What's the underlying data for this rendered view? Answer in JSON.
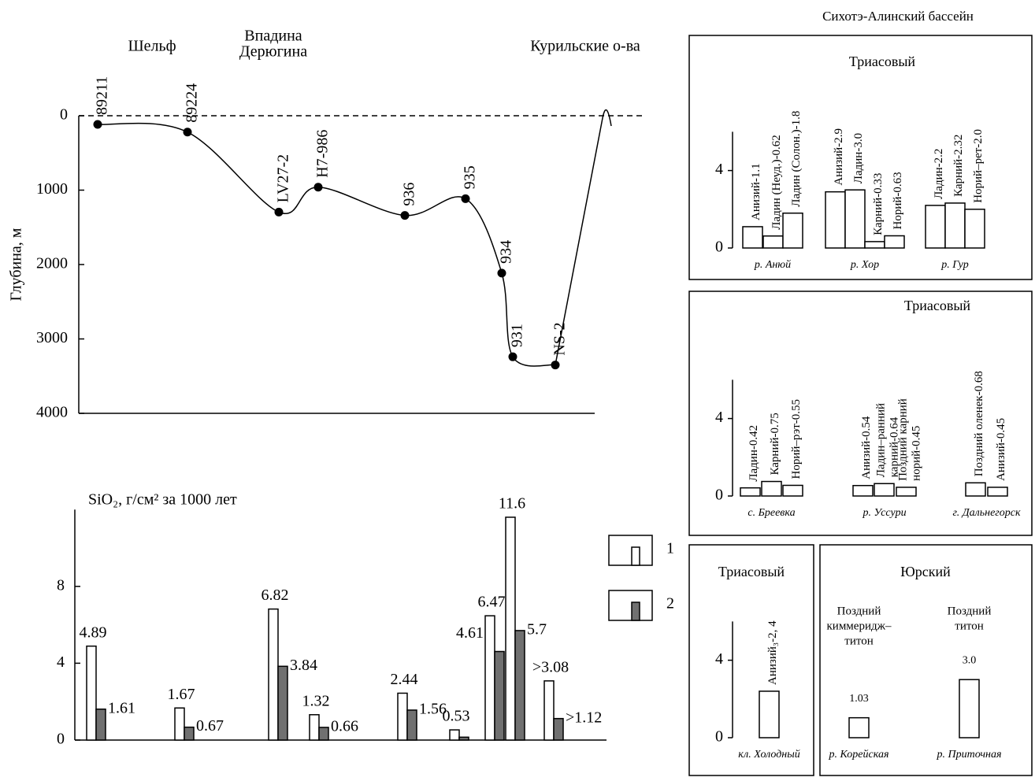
{
  "chart_data": [
    {
      "type": "line",
      "regions": [
        [
          "Шельф"
        ],
        [
          "Впадина",
          "Дерюгина"
        ],
        [
          "Курильские о-ва"
        ]
      ],
      "ylabel": "Глубина, м",
      "categories": [
        "89211",
        "89224",
        "LV27-2",
        "H7-986",
        "936",
        "935",
        "934",
        "931",
        "NS-2"
      ],
      "values": [
        116,
        220,
        1295,
        960,
        1340,
        1115,
        2115,
        3240,
        3350
      ],
      "ylim": [
        0,
        4000
      ],
      "yticks": [
        0,
        1000,
        2000,
        3000,
        4000
      ],
      "yinverted": true,
      "color": "#000000"
    },
    {
      "type": "bar",
      "title": "SiO₂, г/см² за 1000 лет",
      "ylim": [
        0,
        12
      ],
      "yticks": [
        0,
        4,
        8
      ],
      "series": [
        {
          "name": "1",
          "color": "#ffffff",
          "values": [
            4.89,
            1.67,
            6.82,
            1.32,
            2.44,
            0.53,
            6.47,
            11.6,
            3.08
          ],
          "value_labels": [
            "4.89",
            "1.67",
            "6.82",
            "1.32",
            "2.44",
            "0.53",
            "6.47",
            "11.6",
            ">3.08"
          ]
        },
        {
          "name": "2",
          "color": "#707070",
          "values": [
            1.61,
            0.67,
            3.84,
            0.66,
            1.56,
            0.15,
            4.61,
            5.7,
            1.12
          ],
          "value_labels": [
            "1.61",
            "0.67",
            "3.84",
            "0.66",
            "1.56",
            null,
            "4.61",
            "5.7",
            ">1.12"
          ]
        }
      ]
    },
    {
      "type": "column",
      "title": "Сихотэ-Алинский бассейн",
      "ylim": [
        0,
        6
      ],
      "yticks": [
        0,
        4
      ],
      "color": "#ffffff",
      "panels": [
        {
          "title": "Триасовый",
          "yaxis": true,
          "groups": [
            {
              "name": "р. Анюй",
              "bars": [
                {
                  "label": [
                    "Анизий-1.1"
                  ],
                  "value": 1.1
                },
                {
                  "label": [
                    "Ладин (Неуд.)-0.62"
                  ],
                  "value": 0.62
                },
                {
                  "label": [
                    "Ладин (Солон.)-1.8"
                  ],
                  "value": 1.8
                }
              ]
            },
            {
              "name": "р. Хор",
              "bars": [
                {
                  "label": [
                    "Анизий-2.9"
                  ],
                  "value": 2.9
                },
                {
                  "label": [
                    "Ладин-3.0"
                  ],
                  "value": 3
                },
                {
                  "label": [
                    "Карний-0.33"
                  ],
                  "value": 0.33
                },
                {
                  "label": [
                    "Норий-0.63"
                  ],
                  "value": 0.63
                }
              ]
            },
            {
              "name": "р. Гур",
              "bars": [
                {
                  "label": [
                    "Ладин-2.2"
                  ],
                  "value": 2.2
                },
                {
                  "label": [
                    "Карний-2.32"
                  ],
                  "value": 2.32
                },
                {
                  "label": [
                    "Норий–рет-2.0"
                  ],
                  "value": 2
                }
              ]
            }
          ]
        },
        {
          "title": "Триасовый",
          "yaxis": true,
          "groups": [
            {
              "name": "с. Бреевка",
              "bars": [
                {
                  "label": [
                    "Ладин-0.42"
                  ],
                  "value": 0.42
                },
                {
                  "label": [
                    "Карний-0.75"
                  ],
                  "value": 0.75
                },
                {
                  "label": [
                    "Норий–рэт-0.55"
                  ],
                  "value": 0.55
                }
              ]
            },
            {
              "name": "р. Уссури",
              "bars": [
                {
                  "label": [
                    "Анизий-0.54"
                  ],
                  "value": 0.54
                },
                {
                  "label": [
                    "Ладин–ранний",
                    "карний-0.64"
                  ],
                  "value": 0.64
                },
                {
                  "label": [
                    "Поздний карний",
                    "норий-0.45"
                  ],
                  "value": 0.45
                }
              ]
            },
            {
              "name": "г. Дальнегорск",
              "bars": [
                {
                  "label": [
                    "Поздний оленек-0.68"
                  ],
                  "value": 0.68
                },
                {
                  "label": [
                    "Анизий-0.45"
                  ],
                  "value": 0.45
                }
              ]
            }
          ]
        },
        {
          "title": "Триасовый",
          "yaxis": true,
          "groups": [
            {
              "name": "кл. Холодный",
              "bars": [
                {
                  "label": [
                    "Анизий₃-2, 4"
                  ],
                  "value": 2.4
                }
              ]
            }
          ]
        },
        {
          "title": "Юрский",
          "yaxis": false,
          "groups": [
            {
              "name": "р. Корейская",
              "bars": [
                {
                  "header": [
                    "Поздний",
                    "киммеридж–",
                    "титон"
                  ],
                  "value": 1.03,
                  "value_label": "1.03"
                }
              ]
            },
            {
              "name": "р. Приточная",
              "bars": [
                {
                  "header": [
                    "Поздний",
                    "титон"
                  ],
                  "value": 3,
                  "value_label": "3.0"
                }
              ]
            }
          ]
        }
      ]
    }
  ]
}
